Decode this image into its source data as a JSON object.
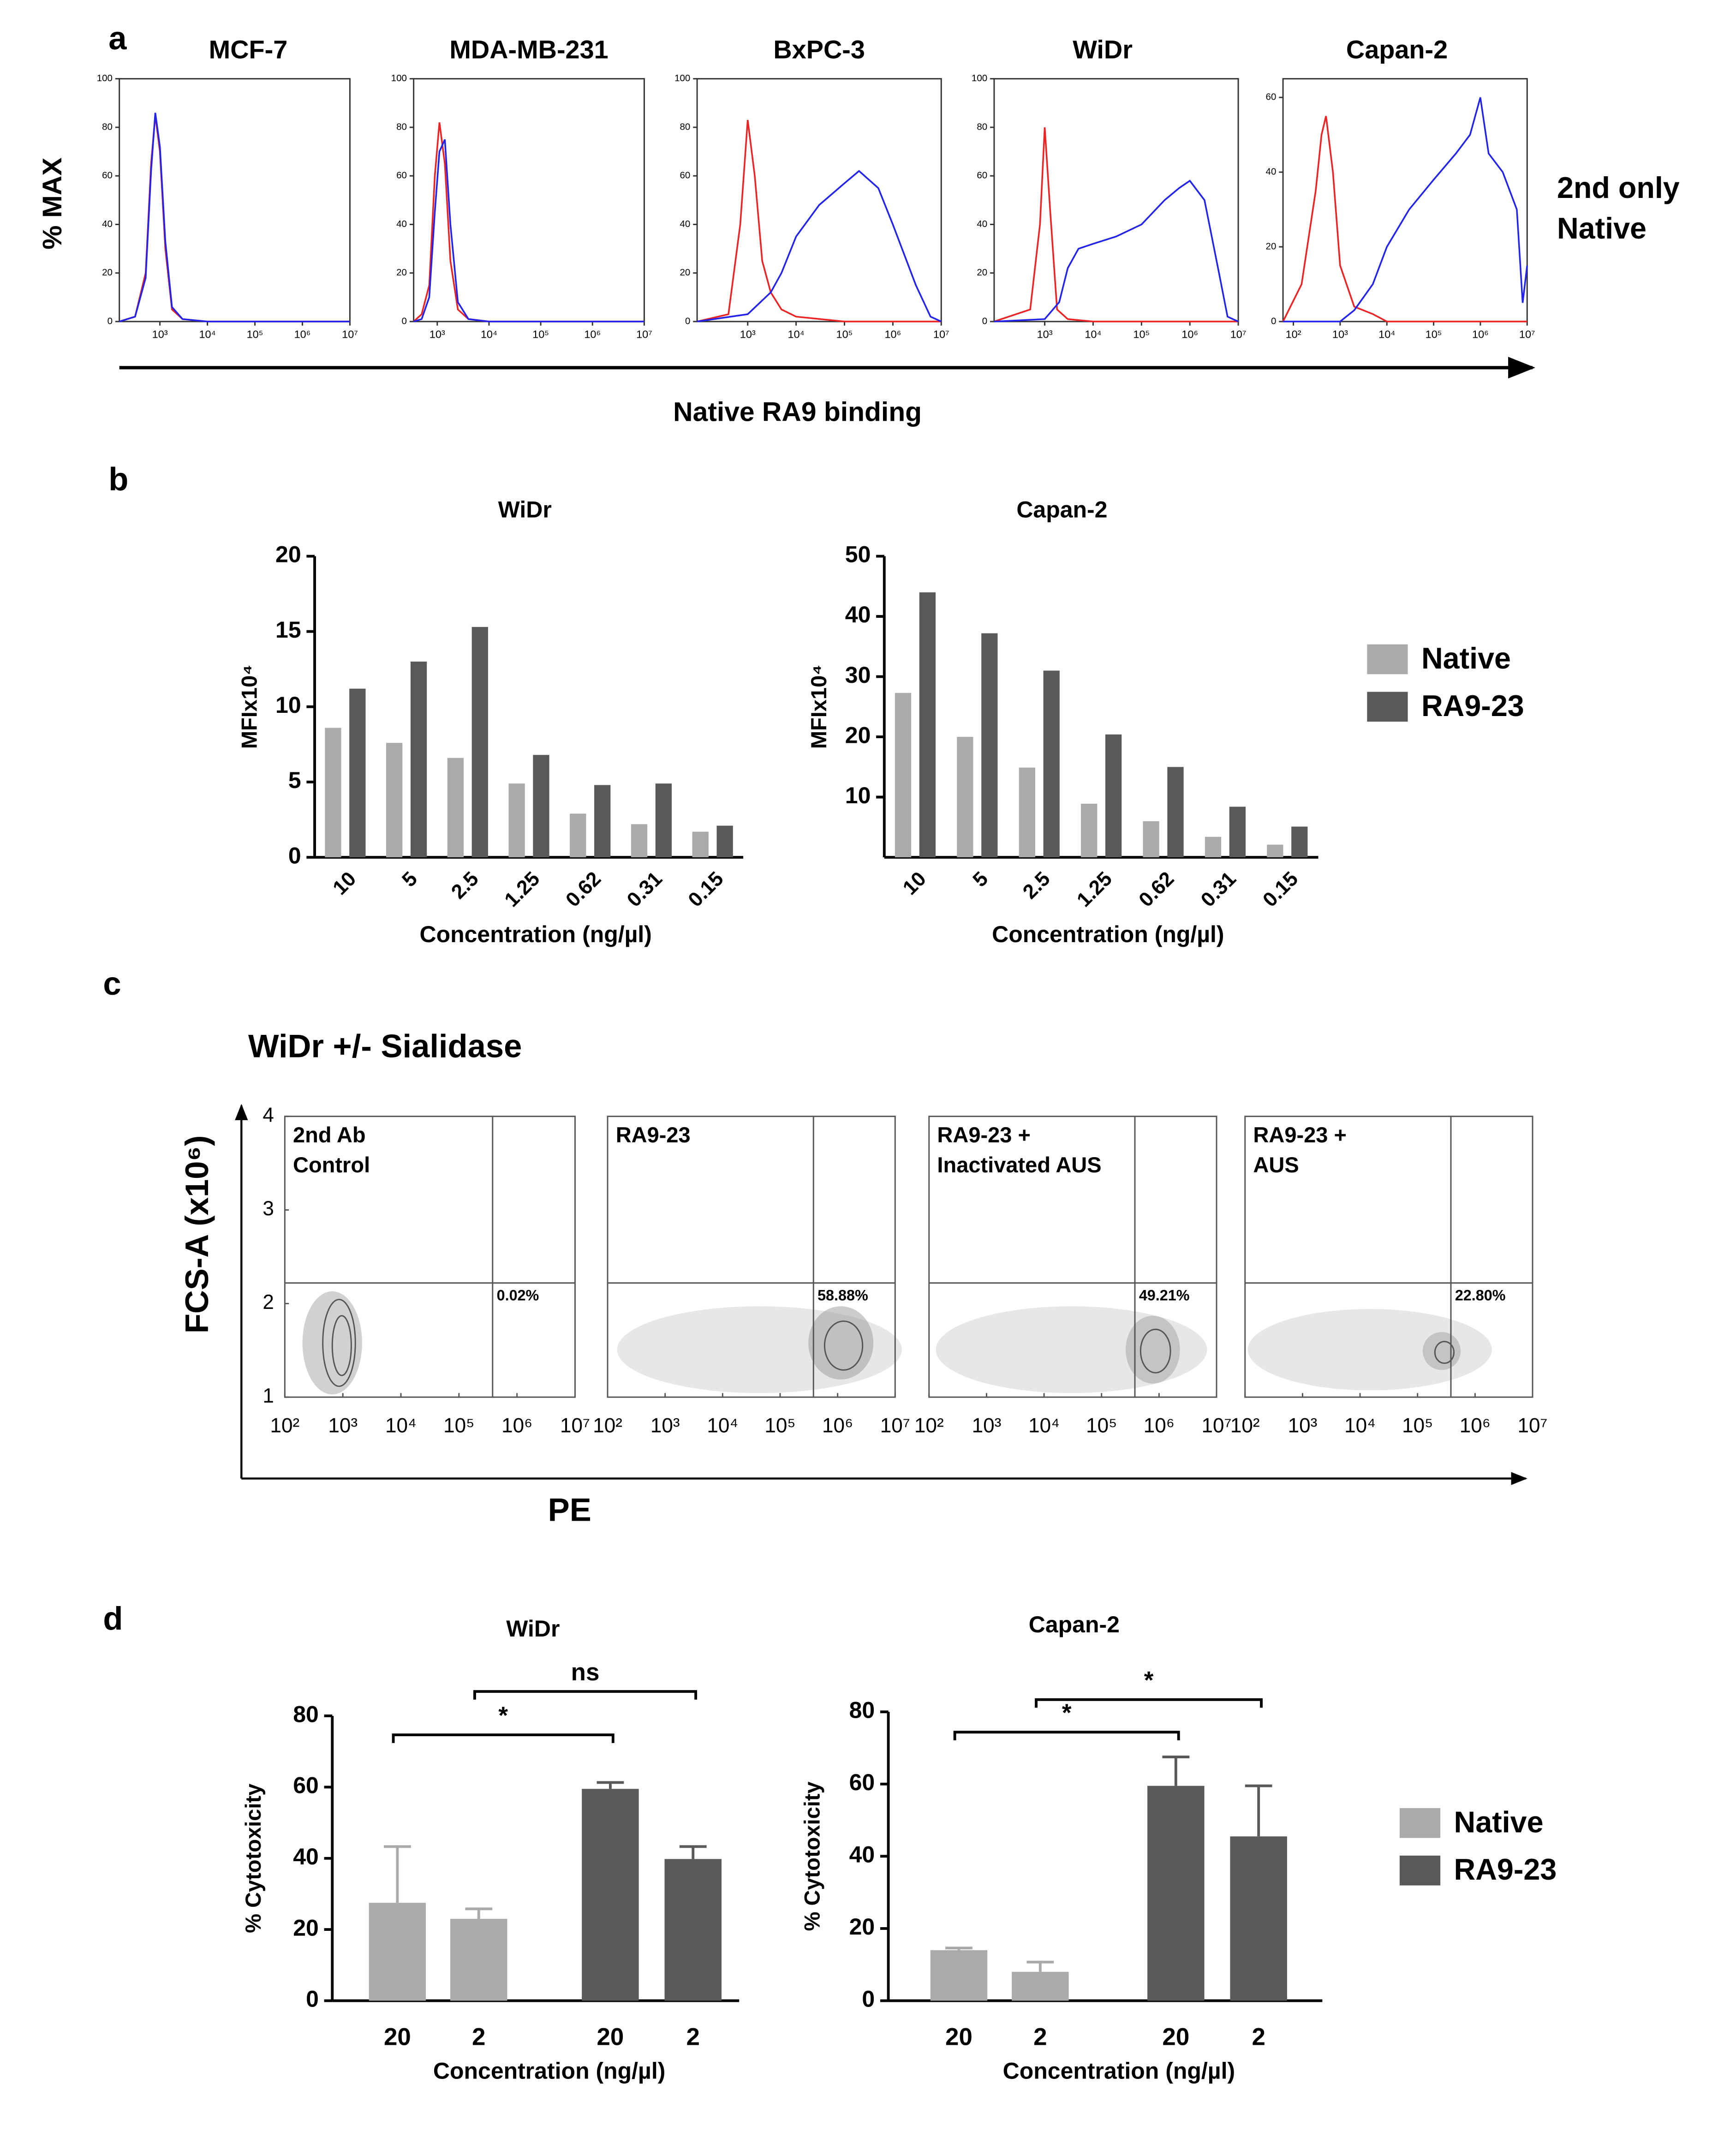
{
  "panel_labels": [
    "a",
    "b",
    "c",
    "d"
  ],
  "panel_a": {
    "y_label": "% MAX",
    "x_label": "Native RA9 binding"
  },
  "panel_c": {
    "title": "WiDr +/- Sialidase",
    "y_label": "FCS-A (x10⁶)",
    "x_label": "PE"
  },
  "chart_data": [
    {
      "type": "line",
      "title": "MCF-7",
      "log_x": true,
      "xlim": [
        140,
        10000000
      ],
      "ylim": [
        0,
        100
      ],
      "xticks": [
        {
          "value": 1000,
          "label": "10³"
        },
        {
          "value": 10000,
          "label": "10⁴"
        },
        {
          "value": 100000,
          "label": "10⁵"
        },
        {
          "value": 1000000,
          "label": "10⁶"
        },
        {
          "value": 10000000,
          "label": "10⁷"
        }
      ],
      "yticks": [
        0,
        20,
        40,
        60,
        80,
        100
      ],
      "series": [
        {
          "name": "2nd only",
          "color": "#ee2222",
          "x": [
            140,
            300,
            500,
            650,
            800,
            1000,
            1300,
            1800,
            3000,
            10000,
            10000000
          ],
          "values": [
            0,
            2,
            20,
            65,
            85,
            70,
            30,
            5,
            1,
            0,
            0
          ]
        },
        {
          "name": "Native",
          "color": "#2222ee",
          "x": [
            140,
            300,
            500,
            650,
            800,
            1000,
            1300,
            1800,
            3000,
            10000,
            10000000
          ],
          "values": [
            0,
            2,
            18,
            62,
            86,
            72,
            33,
            6,
            1,
            0,
            0
          ]
        }
      ]
    },
    {
      "type": "line",
      "title": "MDA-MB-231",
      "log_x": true,
      "xlim": [
        350,
        10000000
      ],
      "ylim": [
        0,
        100
      ],
      "xticks": [
        {
          "value": 1000,
          "label": "10³"
        },
        {
          "value": 10000,
          "label": "10⁴"
        },
        {
          "value": 100000,
          "label": "10⁵"
        },
        {
          "value": 1000000,
          "label": "10⁶"
        },
        {
          "value": 10000000,
          "label": "10⁷"
        }
      ],
      "yticks": [
        0,
        20,
        40,
        60,
        80,
        100
      ],
      "series": [
        {
          "color": "#ee2222",
          "x": [
            350,
            500,
            700,
            900,
            1100,
            1400,
            1800,
            2500,
            4000,
            10000,
            10000000
          ],
          "values": [
            0,
            3,
            15,
            60,
            82,
            65,
            25,
            5,
            1,
            0,
            0
          ]
        },
        {
          "color": "#2222ee",
          "x": [
            350,
            500,
            700,
            900,
            1100,
            1400,
            1800,
            2500,
            4000,
            10000,
            10000000
          ],
          "values": [
            0,
            1,
            10,
            45,
            70,
            75,
            40,
            8,
            1,
            0,
            0
          ]
        }
      ]
    },
    {
      "type": "line",
      "title": "BxPC-3",
      "log_x": true,
      "xlim": [
        90,
        10000000
      ],
      "ylim": [
        0,
        100
      ],
      "xticks": [
        {
          "value": 1000,
          "label": "10³"
        },
        {
          "value": 10000,
          "label": "10⁴"
        },
        {
          "value": 100000,
          "label": "10⁵"
        },
        {
          "value": 1000000,
          "label": "10⁶"
        },
        {
          "value": 10000000,
          "label": "10⁷"
        }
      ],
      "yticks": [
        0,
        20,
        40,
        60,
        80,
        100
      ],
      "series": [
        {
          "color": "#ee2222",
          "x": [
            90,
            400,
            700,
            1000,
            1400,
            2000,
            3000,
            5000,
            10000,
            100000,
            10000000
          ],
          "values": [
            0,
            3,
            40,
            83,
            60,
            25,
            12,
            5,
            2,
            0,
            0
          ]
        },
        {
          "color": "#2222ee",
          "x": [
            90,
            1000,
            3000,
            5000,
            10000,
            30000,
            100000,
            200000,
            500000,
            1000000,
            3000000,
            6000000,
            10000000
          ],
          "values": [
            0,
            3,
            12,
            20,
            35,
            48,
            57,
            62,
            55,
            40,
            15,
            2,
            0
          ]
        }
      ]
    },
    {
      "type": "line",
      "title": "WiDr",
      "log_x": true,
      "xlim": [
        90,
        10000000
      ],
      "ylim": [
        0,
        100
      ],
      "xticks": [
        {
          "value": 1000,
          "label": "10³"
        },
        {
          "value": 10000,
          "label": "10⁴"
        },
        {
          "value": 100000,
          "label": "10⁵"
        },
        {
          "value": 1000000,
          "label": "10⁶"
        },
        {
          "value": 10000000,
          "label": "10⁷"
        }
      ],
      "yticks": [
        0,
        20,
        40,
        60,
        80,
        100
      ],
      "series": [
        {
          "color": "#ee2222",
          "x": [
            90,
            500,
            800,
            1000,
            1300,
            1800,
            3000,
            10000,
            10000000
          ],
          "values": [
            0,
            5,
            40,
            80,
            45,
            5,
            1,
            0,
            0
          ]
        },
        {
          "color": "#2222ee",
          "x": [
            90,
            1000,
            2000,
            3000,
            5000,
            10000,
            30000,
            100000,
            300000,
            600000,
            1000000,
            2000000,
            4000000,
            6000000,
            10000000
          ],
          "values": [
            0,
            1,
            8,
            22,
            30,
            32,
            35,
            40,
            50,
            55,
            58,
            50,
            20,
            2,
            0
          ]
        }
      ]
    },
    {
      "type": "line",
      "title": "Capan-2",
      "log_x": true,
      "xlim": [
        60,
        10000000
      ],
      "ylim": [
        0,
        65
      ],
      "xticks": [
        {
          "value": 100,
          "label": "10²"
        },
        {
          "value": 1000,
          "label": "10³"
        },
        {
          "value": 10000,
          "label": "10⁴"
        },
        {
          "value": 100000,
          "label": "10⁵"
        },
        {
          "value": 1000000,
          "label": "10⁶"
        },
        {
          "value": 10000000,
          "label": "10⁷"
        }
      ],
      "yticks": [
        0,
        20,
        40,
        60
      ],
      "series": [
        {
          "color": "#ee2222",
          "x": [
            60,
            150,
            300,
            400,
            500,
            700,
            1000,
            2000,
            5000,
            10000,
            10000000
          ],
          "values": [
            0,
            10,
            35,
            50,
            55,
            40,
            15,
            4,
            2,
            0,
            0
          ]
        },
        {
          "color": "#2222ee",
          "x": [
            60,
            1000,
            2000,
            5000,
            10000,
            30000,
            100000,
            300000,
            600000,
            1000000,
            1500000,
            3000000,
            6000000,
            8000000,
            10000000
          ],
          "values": [
            0,
            0,
            3,
            10,
            20,
            30,
            38,
            45,
            50,
            60,
            45,
            40,
            30,
            5,
            15
          ]
        }
      ]
    },
    {
      "type": "bar",
      "title": "WiDr",
      "y_label": "MFIx10⁴",
      "x_label": "Concentration (ng/µl)",
      "categories": [
        "10",
        "5",
        "2.5",
        "1.25",
        "0.62",
        "0.31",
        "0.15"
      ],
      "ylim": [
        0,
        20
      ],
      "yticks": [
        0,
        5,
        10,
        15,
        20
      ],
      "series": [
        {
          "name": "Native",
          "color": "#aaaaaa",
          "values": [
            8.6,
            7.6,
            6.6,
            4.9,
            2.9,
            2.2,
            1.7
          ]
        },
        {
          "name": "RA9-23",
          "color": "#595959",
          "values": [
            11.2,
            13,
            15.3,
            6.8,
            4.8,
            4.9,
            2.1
          ]
        }
      ]
    },
    {
      "type": "bar",
      "title": "Capan-2",
      "y_label": "MFIx10⁴",
      "x_label": "Concentration (ng/µl)",
      "categories": [
        "10",
        "5",
        "2.5",
        "1.25",
        "0.62",
        "0.31",
        "0.15"
      ],
      "ylim": [
        0,
        50
      ],
      "yticks": [
        10,
        20,
        30,
        40,
        50
      ],
      "series": [
        {
          "color": "#aaaaaa",
          "values": [
            27.3,
            20,
            14.9,
            8.9,
            6,
            3.4,
            2.1
          ]
        },
        {
          "color": "#595959",
          "values": [
            44,
            37.2,
            31,
            20.4,
            15,
            8.4,
            5.1
          ]
        }
      ]
    },
    {
      "type": "flow",
      "title": [
        "2nd Ab",
        "Control"
      ],
      "quadrant_label": "0.02%",
      "log_x": true,
      "xlim": [
        100,
        10000000
      ],
      "ylim": [
        1,
        4
      ],
      "gate_x": 380000,
      "gate_y": 2.22,
      "xticks": [
        {
          "value": 100,
          "label": "10²"
        },
        {
          "value": 1000,
          "label": "10³"
        },
        {
          "value": 10000,
          "label": "10⁴"
        },
        {
          "value": 100000,
          "label": "10⁵"
        },
        {
          "value": 1000000,
          "label": "10⁶"
        },
        {
          "value": 10000000,
          "label": "10⁷"
        }
      ],
      "yticks": [
        1,
        2,
        3,
        4
      ]
    },
    {
      "type": "flow",
      "title": [
        "RA9-23"
      ],
      "quadrant_label": "58.88%",
      "log_x": true,
      "xlim": [
        100,
        10000000
      ],
      "ylim": [
        1,
        4
      ],
      "gate_x": 380000,
      "gate_y": 2.22,
      "xticks": [
        {
          "value": 100,
          "label": "10²"
        },
        {
          "value": 1000,
          "label": "10³"
        },
        {
          "value": 10000,
          "label": "10⁴"
        },
        {
          "value": 100000,
          "label": "10⁵"
        },
        {
          "value": 1000000,
          "label": "10⁶"
        },
        {
          "value": 10000000,
          "label": "10⁷"
        }
      ]
    },
    {
      "type": "flow",
      "title": [
        "RA9-23 +",
        "Inactivated AUS"
      ],
      "quadrant_label": "49.21%",
      "log_x": true,
      "xlim": [
        100,
        10000000
      ],
      "ylim": [
        1,
        4
      ],
      "gate_x": 380000,
      "gate_y": 2.22,
      "xticks": [
        {
          "value": 100,
          "label": "10²"
        },
        {
          "value": 1000,
          "label": "10³"
        },
        {
          "value": 10000,
          "label": "10⁴"
        },
        {
          "value": 100000,
          "label": "10⁵"
        },
        {
          "value": 1000000,
          "label": "10⁶"
        },
        {
          "value": 10000000,
          "label": "10⁷"
        }
      ]
    },
    {
      "type": "flow",
      "title": [
        "RA9-23 +",
        "AUS"
      ],
      "quadrant_label": "22.80%",
      "log_x": true,
      "xlim": [
        100,
        10000000
      ],
      "ylim": [
        1,
        4
      ],
      "gate_x": 380000,
      "gate_y": 2.22,
      "xticks": [
        {
          "value": 100,
          "label": "10²"
        },
        {
          "value": 1000,
          "label": "10³"
        },
        {
          "value": 10000,
          "label": "10⁴"
        },
        {
          "value": 100000,
          "label": "10⁵"
        },
        {
          "value": 1000000,
          "label": "10⁶"
        },
        {
          "value": 10000000,
          "label": "10⁷"
        }
      ]
    },
    {
      "type": "bar",
      "title": "WiDr",
      "y_label": "% Cytotoxicity",
      "x_label": "Concentration (ng/µl)",
      "categories": [
        "20",
        "2",
        "20",
        "2"
      ],
      "ylim": [
        0,
        80
      ],
      "yticks": [
        0,
        20,
        40,
        60,
        80
      ],
      "series": [
        {
          "name": "Native",
          "color": "#aaaaaa",
          "values": [
            27.5,
            23,
            null,
            null
          ],
          "errors": [
            15.8,
            2.8,
            null,
            null
          ]
        },
        {
          "name": "RA9-23",
          "color": "#595959",
          "values": [
            null,
            null,
            59.5,
            39.8
          ],
          "errors": [
            null,
            null,
            1.8,
            3.5
          ]
        }
      ],
      "significance": [
        {
          "from": 0,
          "to": 2,
          "label": "*"
        },
        {
          "from": 1,
          "to": 3,
          "label": "ns"
        }
      ]
    },
    {
      "type": "bar",
      "title": "Capan-2",
      "y_label": "% Cytotoxicity",
      "x_label": "Concentration (ng/µl)",
      "categories": [
        "20",
        "2",
        "20",
        "2"
      ],
      "ylim": [
        0,
        80
      ],
      "yticks": [
        0,
        20,
        40,
        60,
        80
      ],
      "series": [
        {
          "color": "#aaaaaa",
          "values": [
            14,
            8,
            null,
            null
          ],
          "errors": [
            0.6,
            2.7,
            null,
            null
          ]
        },
        {
          "color": "#595959",
          "values": [
            null,
            null,
            59.5,
            45.5
          ],
          "errors": [
            null,
            null,
            8,
            14
          ]
        }
      ],
      "significance": [
        {
          "from": 0,
          "to": 2,
          "label": "*"
        },
        {
          "from": 1,
          "to": 3,
          "label": "*"
        }
      ]
    }
  ]
}
